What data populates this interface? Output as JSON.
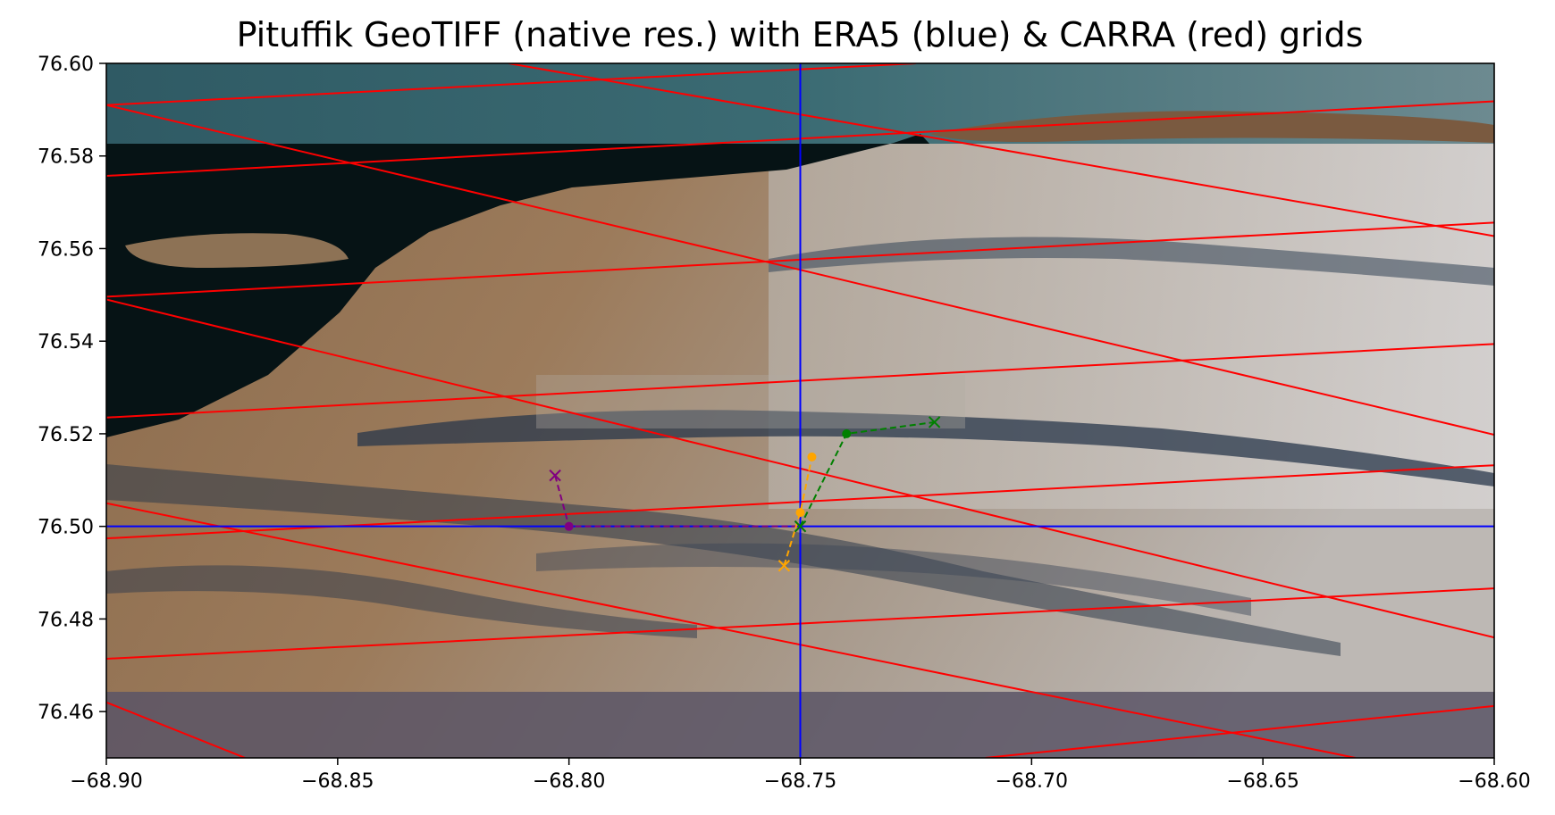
{
  "chart_data": {
    "type": "line",
    "title": "Pituffik GeoTIFF (native res.) with ERA5 (blue) & CARRA (red) grids",
    "xlabel": "",
    "ylabel": "",
    "xlim": [
      -68.9,
      -68.6
    ],
    "ylim": [
      76.45,
      76.6
    ],
    "x_ticks": [
      -68.9,
      -68.85,
      -68.8,
      -68.75,
      -68.7,
      -68.65,
      -68.6
    ],
    "x_tick_labels": [
      "−68.90",
      "−68.85",
      "−68.80",
      "−68.75",
      "−68.70",
      "−68.65",
      "−68.60"
    ],
    "y_ticks": [
      76.46,
      76.48,
      76.5,
      76.52,
      76.54,
      76.56,
      76.58,
      76.6
    ],
    "y_tick_labels": [
      "76.46",
      "76.48",
      "76.50",
      "76.52",
      "76.54",
      "76.56",
      "76.58",
      "76.60"
    ],
    "grid": false,
    "background": "satellite image (Pituffik GeoTIFF)",
    "era5_grid": {
      "color": "#0000ff",
      "lons": [
        -68.75
      ],
      "lats": [
        76.5
      ]
    },
    "carra_grid": {
      "color": "#ff0000",
      "lines": [
        {
          "x": [
            -68.9,
            -68.6
          ],
          "y": [
            76.4714,
            76.4866
          ]
        },
        {
          "x": [
            -68.9,
            -68.6
          ],
          "y": [
            76.4974,
            76.5132
          ]
        },
        {
          "x": [
            -68.9,
            -68.6
          ],
          "y": [
            76.5235,
            76.5394
          ]
        },
        {
          "x": [
            -68.9,
            -68.6
          ],
          "y": [
            76.5496,
            76.5656
          ]
        },
        {
          "x": [
            -68.9,
            -68.6
          ],
          "y": [
            76.5757,
            76.5918
          ]
        },
        {
          "x": [
            -68.71,
            -68.6
          ],
          "y": [
            76.45,
            76.4612
          ]
        },
        {
          "x": [
            -68.9,
            -68.725
          ],
          "y": [
            76.591,
            76.6
          ]
        },
        {
          "x": [
            -68.9,
            -68.6
          ],
          "y": [
            76.549,
            76.476
          ]
        },
        {
          "x": [
            -68.9,
            -68.6
          ],
          "y": [
            76.591,
            76.5198
          ]
        },
        {
          "x": [
            -68.813,
            -68.6
          ],
          "y": [
            76.6,
            76.5627
          ]
        },
        {
          "x": [
            -68.9,
            -68.63
          ],
          "y": [
            76.505,
            76.45
          ]
        },
        {
          "x": [
            -68.9,
            -68.87
          ],
          "y": [
            76.462,
            76.45
          ]
        }
      ]
    },
    "series": [
      {
        "color": "#800080",
        "points": [
          {
            "x": -68.803,
            "y": 76.511,
            "marker": "x"
          },
          {
            "x": -68.8,
            "y": 76.5,
            "marker": "o"
          },
          {
            "x": -68.75,
            "y": 76.5,
            "marker": "x"
          }
        ]
      },
      {
        "color": "#ffa500",
        "points": [
          {
            "x": -68.7535,
            "y": 76.4915,
            "marker": "x"
          },
          {
            "x": -68.75,
            "y": 76.503,
            "marker": "o"
          },
          {
            "x": -68.7475,
            "y": 76.515,
            "marker": "o"
          }
        ]
      },
      {
        "color": "#008000",
        "points": [
          {
            "x": -68.75,
            "y": 76.5,
            "marker": "x"
          },
          {
            "x": -68.74,
            "y": 76.52,
            "marker": "o"
          },
          {
            "x": -68.721,
            "y": 76.5225,
            "marker": "x"
          }
        ]
      }
    ]
  }
}
